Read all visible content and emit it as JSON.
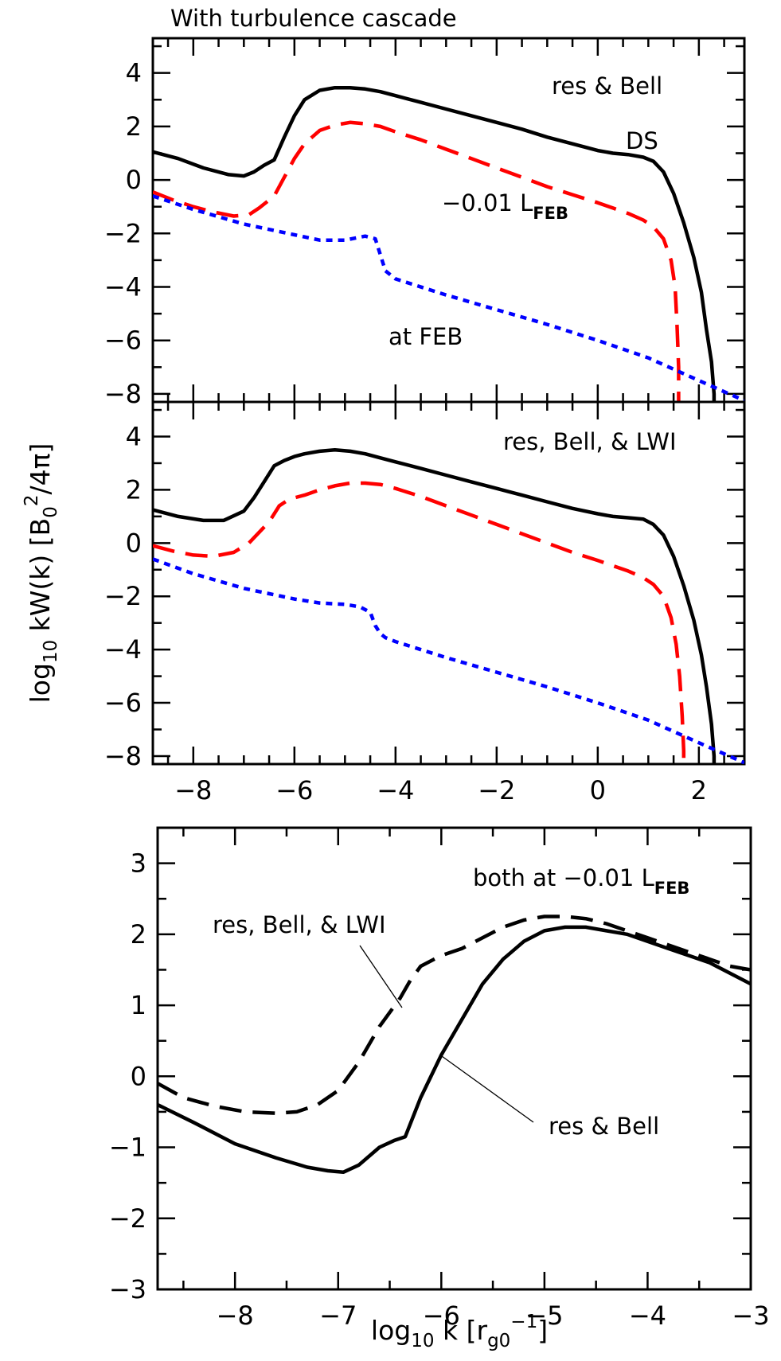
{
  "figure": {
    "title": "With turbulence cascade",
    "ylabel": {
      "pre": "log",
      "sub1": "10",
      "mid": " kW(k)  [B",
      "sub2": "0",
      "sup": "2",
      "post": "/4π]"
    },
    "xlabel": {
      "pre": "log",
      "sub1": "10",
      "mid": " k [r",
      "sub2": "g0",
      "sup": "−1",
      "post": "]"
    }
  },
  "colors": {
    "ds": "#000000",
    "feb_minus": "#ff0000",
    "at_feb": "#0000ff"
  },
  "chart_data": [
    {
      "type": "line",
      "panel": "top",
      "xlim": [
        -8.8,
        2.9
      ],
      "ylim": [
        -8.3,
        5.3
      ],
      "xticks": [
        -8,
        -6,
        -4,
        -2,
        0,
        2
      ],
      "yticks": [
        -8,
        -6,
        -4,
        -2,
        0,
        2,
        4
      ],
      "show_xticklabels": false,
      "annotations": {
        "label": "res & Bell",
        "ds": "DS",
        "feb_pre": "−0.01 L",
        "feb_sub": "FEB",
        "at_feb": "at FEB"
      },
      "series": [
        {
          "key": "ds",
          "style": "solid",
          "color": "#000000",
          "x": [
            -8.8,
            -8.3,
            -7.8,
            -7.3,
            -7.0,
            -6.8,
            -6.6,
            -6.4,
            -6.2,
            -6.0,
            -5.8,
            -5.5,
            -5.2,
            -4.9,
            -4.6,
            -4.3,
            -4.0,
            -3.5,
            -3.0,
            -2.5,
            -2.0,
            -1.5,
            -1.0,
            -0.5,
            0.0,
            0.3,
            0.6,
            0.9,
            1.1,
            1.3,
            1.5,
            1.7,
            1.9,
            2.05,
            2.15,
            2.25,
            2.3,
            2.3
          ],
          "y": [
            1.05,
            0.8,
            0.45,
            0.2,
            0.15,
            0.3,
            0.55,
            0.75,
            1.6,
            2.4,
            3.0,
            3.35,
            3.45,
            3.45,
            3.4,
            3.3,
            3.15,
            2.9,
            2.65,
            2.4,
            2.15,
            1.9,
            1.6,
            1.35,
            1.1,
            1.0,
            0.95,
            0.85,
            0.7,
            0.3,
            -0.5,
            -1.6,
            -2.9,
            -4.2,
            -5.6,
            -6.8,
            -8.0,
            -8.3
          ]
        },
        {
          "key": "feb_minus",
          "style": "dashed",
          "color": "#ff0000",
          "x": [
            -8.8,
            -8.4,
            -8.0,
            -7.6,
            -7.2,
            -6.9,
            -6.7,
            -6.4,
            -6.2,
            -6.0,
            -5.8,
            -5.5,
            -5.2,
            -4.9,
            -4.6,
            -4.3,
            -4.0,
            -3.5,
            -3.0,
            -2.5,
            -2.0,
            -1.5,
            -1.0,
            -0.5,
            0.0,
            0.3,
            0.6,
            0.9,
            1.1,
            1.3,
            1.45,
            1.53,
            1.57,
            1.6,
            1.6
          ],
          "y": [
            -0.45,
            -0.75,
            -1.0,
            -1.2,
            -1.35,
            -1.3,
            -1.05,
            -0.6,
            0.1,
            0.8,
            1.35,
            1.85,
            2.05,
            2.15,
            2.1,
            2.0,
            1.8,
            1.5,
            1.15,
            0.8,
            0.45,
            0.1,
            -0.25,
            -0.55,
            -0.85,
            -1.05,
            -1.25,
            -1.5,
            -1.75,
            -2.2,
            -3.0,
            -4.0,
            -5.5,
            -7.0,
            -8.3
          ]
        },
        {
          "key": "at_feb",
          "style": "dotted",
          "color": "#0000ff",
          "x": [
            -8.8,
            -8.0,
            -7.0,
            -6.0,
            -5.5,
            -5.0,
            -4.6,
            -4.4,
            -4.3,
            -4.2,
            -4.0,
            -3.0,
            -2.0,
            -1.0,
            0.0,
            1.0,
            2.0,
            2.9
          ],
          "y": [
            -0.6,
            -1.1,
            -1.65,
            -2.05,
            -2.25,
            -2.25,
            -2.1,
            -2.2,
            -2.8,
            -3.4,
            -3.7,
            -4.3,
            -4.85,
            -5.4,
            -6.0,
            -6.65,
            -7.5,
            -8.25
          ]
        }
      ]
    },
    {
      "type": "line",
      "panel": "middle",
      "xlim": [
        -8.8,
        2.9
      ],
      "ylim": [
        -8.3,
        5.3
      ],
      "xticks": [
        -8,
        -6,
        -4,
        -2,
        0,
        2
      ],
      "yticks": [
        -8,
        -6,
        -4,
        -2,
        0,
        2,
        4
      ],
      "xticklabels": [
        "−8",
        "−6",
        "−4",
        "−2",
        "0",
        "2"
      ],
      "annotations": {
        "label": "res, Bell, & LWI"
      },
      "series": [
        {
          "key": "ds",
          "style": "solid",
          "color": "#000000",
          "x": [
            -8.8,
            -8.3,
            -7.8,
            -7.4,
            -7.0,
            -6.8,
            -6.6,
            -6.4,
            -6.2,
            -6.0,
            -5.8,
            -5.5,
            -5.2,
            -4.9,
            -4.6,
            -4.3,
            -4.0,
            -3.5,
            -3.0,
            -2.5,
            -2.0,
            -1.5,
            -1.0,
            -0.5,
            0.0,
            0.3,
            0.6,
            0.9,
            1.1,
            1.3,
            1.5,
            1.7,
            1.9,
            2.05,
            2.15,
            2.25,
            2.3,
            2.3
          ],
          "y": [
            1.25,
            1.0,
            0.85,
            0.85,
            1.2,
            1.7,
            2.3,
            2.9,
            3.1,
            3.25,
            3.35,
            3.45,
            3.5,
            3.45,
            3.35,
            3.2,
            3.05,
            2.8,
            2.55,
            2.3,
            2.05,
            1.8,
            1.55,
            1.3,
            1.1,
            1.0,
            0.95,
            0.9,
            0.7,
            0.3,
            -0.5,
            -1.6,
            -2.9,
            -4.2,
            -5.4,
            -6.8,
            -8.0,
            -8.3
          ]
        },
        {
          "key": "feb_minus",
          "style": "dashed",
          "color": "#ff0000",
          "x": [
            -8.8,
            -8.4,
            -8.0,
            -7.6,
            -7.2,
            -6.9,
            -6.7,
            -6.5,
            -6.3,
            -6.1,
            -5.8,
            -5.5,
            -5.2,
            -4.9,
            -4.6,
            -4.3,
            -4.0,
            -3.5,
            -3.0,
            -2.5,
            -2.0,
            -1.5,
            -1.0,
            -0.5,
            0.0,
            0.3,
            0.6,
            0.9,
            1.1,
            1.3,
            1.45,
            1.55,
            1.62,
            1.67,
            1.7,
            1.7
          ],
          "y": [
            -0.1,
            -0.3,
            -0.45,
            -0.5,
            -0.35,
            0.0,
            0.4,
            0.8,
            1.4,
            1.65,
            1.8,
            2.0,
            2.15,
            2.25,
            2.25,
            2.2,
            2.05,
            1.75,
            1.4,
            1.05,
            0.7,
            0.35,
            0.0,
            -0.35,
            -0.65,
            -0.85,
            -1.05,
            -1.3,
            -1.55,
            -2.0,
            -2.8,
            -3.8,
            -5.0,
            -6.5,
            -7.8,
            -8.3
          ]
        },
        {
          "key": "at_feb",
          "style": "dotted",
          "color": "#0000ff",
          "x": [
            -8.8,
            -8.0,
            -7.0,
            -6.0,
            -5.5,
            -5.0,
            -4.7,
            -4.5,
            -4.4,
            -4.3,
            -4.2,
            -4.0,
            -3.0,
            -2.0,
            -1.0,
            0.0,
            1.0,
            2.0,
            2.9
          ],
          "y": [
            -0.6,
            -1.15,
            -1.7,
            -2.1,
            -2.25,
            -2.3,
            -2.4,
            -2.6,
            -3.1,
            -3.4,
            -3.55,
            -3.7,
            -4.3,
            -4.85,
            -5.4,
            -6.0,
            -6.65,
            -7.5,
            -8.25
          ]
        }
      ]
    },
    {
      "type": "line",
      "panel": "bottom",
      "xlim": [
        -8.75,
        -3.0
      ],
      "ylim": [
        -3.0,
        3.5
      ],
      "xticks": [
        -8,
        -7,
        -6,
        -5,
        -4,
        -3
      ],
      "yticks": [
        -3,
        -2,
        -1,
        0,
        1,
        2,
        3
      ],
      "xticklabels": [
        "−8",
        "−7",
        "−6",
        "−5",
        "−4",
        "−3"
      ],
      "yticklabels": [
        "−3",
        "−2",
        "−1",
        "0",
        "1",
        "2",
        "3"
      ],
      "annotations": {
        "both_pre": "both at −0.01 L",
        "both_sub": "FEB",
        "lwi": "res, Bell, & LWI",
        "bell": "res & Bell"
      },
      "series": [
        {
          "key": "res_bell_lwi",
          "style": "dashed",
          "color": "#000000",
          "x": [
            -8.75,
            -8.5,
            -8.2,
            -7.9,
            -7.6,
            -7.4,
            -7.2,
            -7.0,
            -6.8,
            -6.6,
            -6.4,
            -6.3,
            -6.2,
            -6.0,
            -5.8,
            -5.6,
            -5.4,
            -5.2,
            -5.0,
            -4.8,
            -4.6,
            -4.4,
            -4.2,
            -4.0,
            -3.8,
            -3.6,
            -3.4,
            -3.2,
            -3.0
          ],
          "y": [
            -0.1,
            -0.3,
            -0.42,
            -0.5,
            -0.52,
            -0.5,
            -0.4,
            -0.2,
            0.2,
            0.7,
            1.1,
            1.35,
            1.55,
            1.7,
            1.8,
            1.95,
            2.1,
            2.2,
            2.25,
            2.25,
            2.22,
            2.15,
            2.05,
            1.95,
            1.85,
            1.75,
            1.65,
            1.55,
            1.5
          ]
        },
        {
          "key": "res_bell",
          "style": "solid",
          "color": "#000000",
          "x": [
            -8.75,
            -8.4,
            -8.0,
            -7.6,
            -7.3,
            -7.1,
            -6.95,
            -6.8,
            -6.6,
            -6.45,
            -6.35,
            -6.2,
            -6.0,
            -5.8,
            -5.6,
            -5.4,
            -5.2,
            -5.0,
            -4.8,
            -4.6,
            -4.4,
            -4.2,
            -4.0,
            -3.8,
            -3.6,
            -3.4,
            -3.2,
            -3.0
          ],
          "y": [
            -0.4,
            -0.65,
            -0.95,
            -1.15,
            -1.28,
            -1.33,
            -1.35,
            -1.25,
            -1.0,
            -0.9,
            -0.85,
            -0.3,
            0.3,
            0.8,
            1.3,
            1.65,
            1.9,
            2.05,
            2.1,
            2.1,
            2.05,
            2.0,
            1.9,
            1.8,
            1.7,
            1.6,
            1.45,
            1.3
          ]
        }
      ]
    }
  ]
}
